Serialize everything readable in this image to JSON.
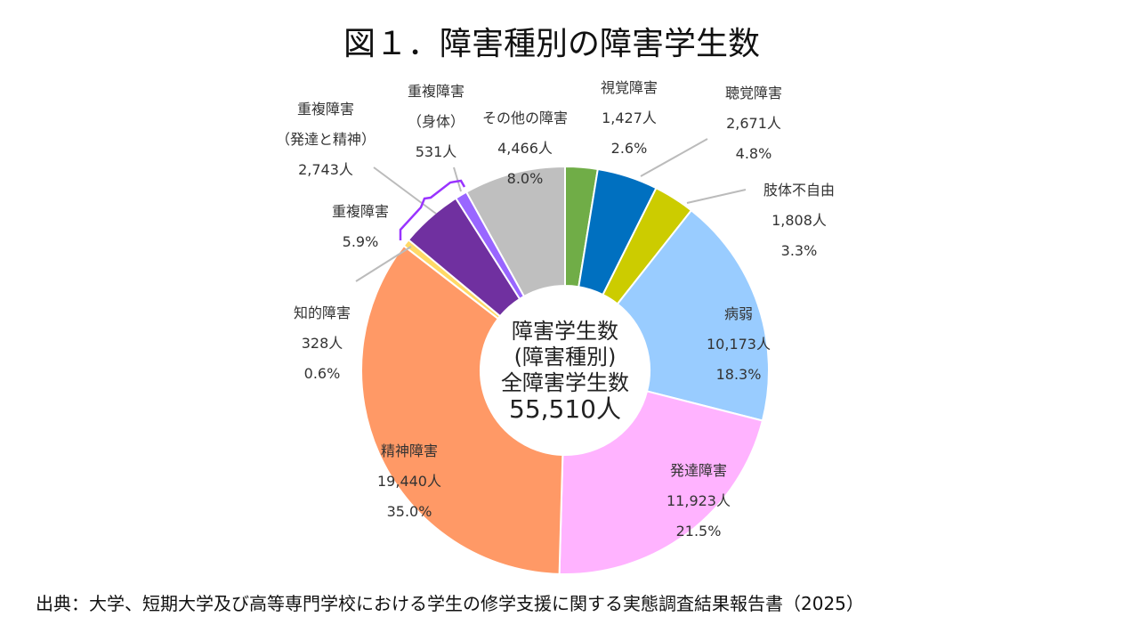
{
  "title": "図１．障害種別の障害学生数",
  "source": "出典：大学、短期大学及び高等専門学校における学生の修学支援に関する実態調査結果報告書（2025）",
  "chart_data": {
    "type": "pie",
    "variant": "donut",
    "title": "図１．障害種別の障害学生数",
    "center_label": {
      "line1": "障害学生数",
      "line2": "(障害種別)",
      "line3": "全障害学生数",
      "total": "55,510人"
    },
    "total": 55510,
    "slices": [
      {
        "name": "視覚障害",
        "value": 1427,
        "value_label": "1,427人",
        "percent": "2.6%",
        "color": "#70AD47"
      },
      {
        "name": "聴覚障害",
        "value": 2671,
        "value_label": "2,671人",
        "percent": "4.8%",
        "color": "#0070C0"
      },
      {
        "name": "肢体不自由",
        "value": 1808,
        "value_label": "1,808人",
        "percent": "3.3%",
        "color": "#CCCC00"
      },
      {
        "name": "病弱",
        "value": 10173,
        "value_label": "10,173人",
        "percent": "18.3%",
        "color": "#99CCFF"
      },
      {
        "name": "発達障害",
        "value": 11923,
        "value_label": "11,923人",
        "percent": "21.5%",
        "color": "#FFB3FF"
      },
      {
        "name": "精神障害",
        "value": 19440,
        "value_label": "19,440人",
        "percent": "35.0%",
        "color": "#FF9966"
      },
      {
        "name": "知的障害",
        "value": 328,
        "value_label": "328人",
        "percent": "0.6%",
        "color": "#FFD966"
      },
      {
        "name": "重複障害（発達と精神）",
        "name_line1": "重複障害",
        "name_line2": "（発達と精神）",
        "value": 2743,
        "value_label": "2,743人",
        "percent": "",
        "color": "#7030A0"
      },
      {
        "name": "重複障害（身体）",
        "name_line1": "重複障害",
        "name_line2": "（身体）",
        "value": 531,
        "value_label": "531人",
        "percent": "",
        "color": "#9966FF"
      },
      {
        "name": "その他の障害",
        "value": 4466,
        "value_label": "4,466人",
        "percent": "8.0%",
        "color": "#BFBFBF"
      }
    ],
    "group_label": {
      "name": "重複障害",
      "percent": "5.9%",
      "color": "#9933FF"
    }
  }
}
